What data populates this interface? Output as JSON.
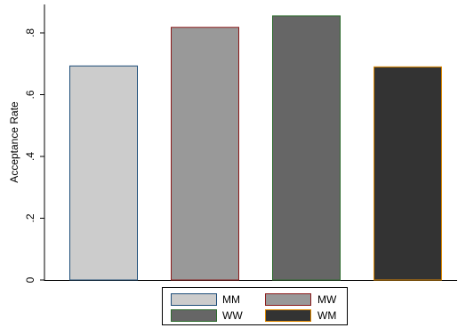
{
  "chart_data": {
    "type": "bar",
    "categories": [
      "MM",
      "MW",
      "WW",
      "WM"
    ],
    "values": [
      0.693,
      0.818,
      0.855,
      0.69
    ],
    "title": "",
    "xlabel": "",
    "ylabel": "Acceptance Rate",
    "ylim": [
      0,
      0.9
    ],
    "yticks": [
      {
        "value": 0,
        "label": "0"
      },
      {
        "value": 0.2,
        "label": ".2"
      },
      {
        "value": 0.4,
        "label": ".4"
      },
      {
        "value": 0.6,
        "label": ".6"
      },
      {
        "value": 0.8,
        "label": ".8"
      }
    ],
    "grid": false,
    "legend": {
      "placement": "bottom",
      "entries": [
        {
          "label": "MM",
          "fill": "#cccccc",
          "stroke": "#1f4e79"
        },
        {
          "label": "MW",
          "fill": "#999999",
          "stroke": "#8b1a1a"
        },
        {
          "label": "WW",
          "fill": "#666666",
          "stroke": "#2e6b2e"
        },
        {
          "label": "WM",
          "fill": "#333333",
          "stroke": "#e08a00"
        }
      ]
    }
  }
}
